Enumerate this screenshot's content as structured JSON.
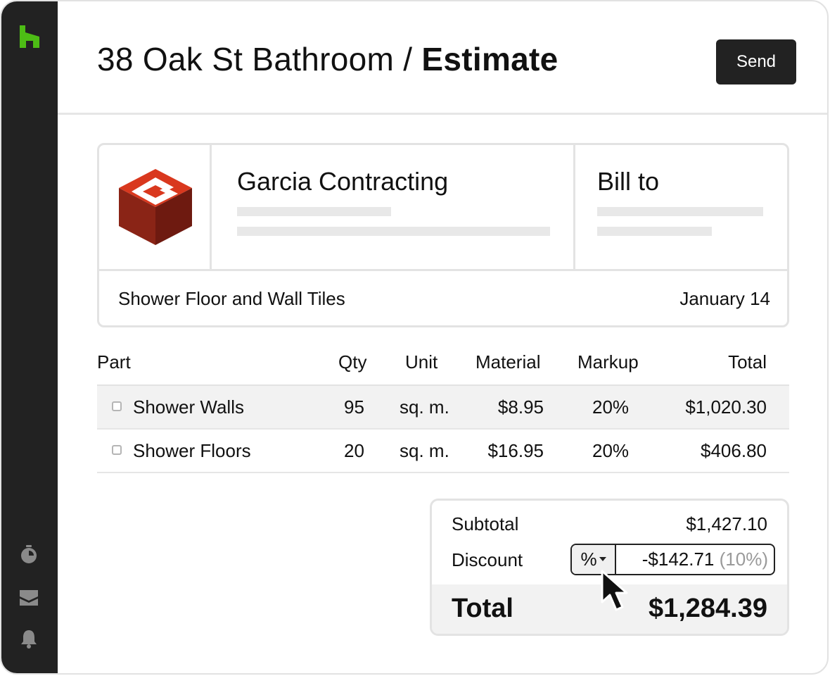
{
  "header": {
    "title_prefix": "38 Oak St Bathroom / ",
    "title_strong": "Estimate",
    "send_label": "Send"
  },
  "sidebar": {
    "logo_icon": "houzz-logo-icon",
    "brand_color": "#4dbc15",
    "icons": [
      "stopwatch-icon",
      "inbox-icon",
      "bell-icon"
    ]
  },
  "estimate_card": {
    "company_name": "Garcia Contracting",
    "bill_to_label": "Bill to",
    "project_title": "Shower Floor and Wall Tiles",
    "date": "January 14"
  },
  "table": {
    "headers": {
      "part": "Part",
      "qty": "Qty",
      "unit": "Unit",
      "material": "Material",
      "markup": "Markup",
      "total": "Total"
    },
    "rows": [
      {
        "part": "Shower Walls",
        "qty": "95",
        "unit": "sq. m.",
        "material": "$8.95",
        "markup": "20%",
        "total": "$1,020.30"
      },
      {
        "part": "Shower Floors",
        "qty": "20",
        "unit": "sq. m.",
        "material": "$16.95",
        "markup": "20%",
        "total": "$406.80"
      }
    ]
  },
  "summary": {
    "subtotal_label": "Subtotal",
    "subtotal_value": "$1,427.10",
    "discount_label": "Discount",
    "discount_type": "%",
    "discount_amount": "-$142.71",
    "discount_percent": "(10%)",
    "total_label": "Total",
    "total_value": "$1,284.39"
  },
  "colors": {
    "sidebar_bg": "#222222",
    "logo_red": "#d9381e",
    "logo_dark_red": "#7a1c12"
  }
}
